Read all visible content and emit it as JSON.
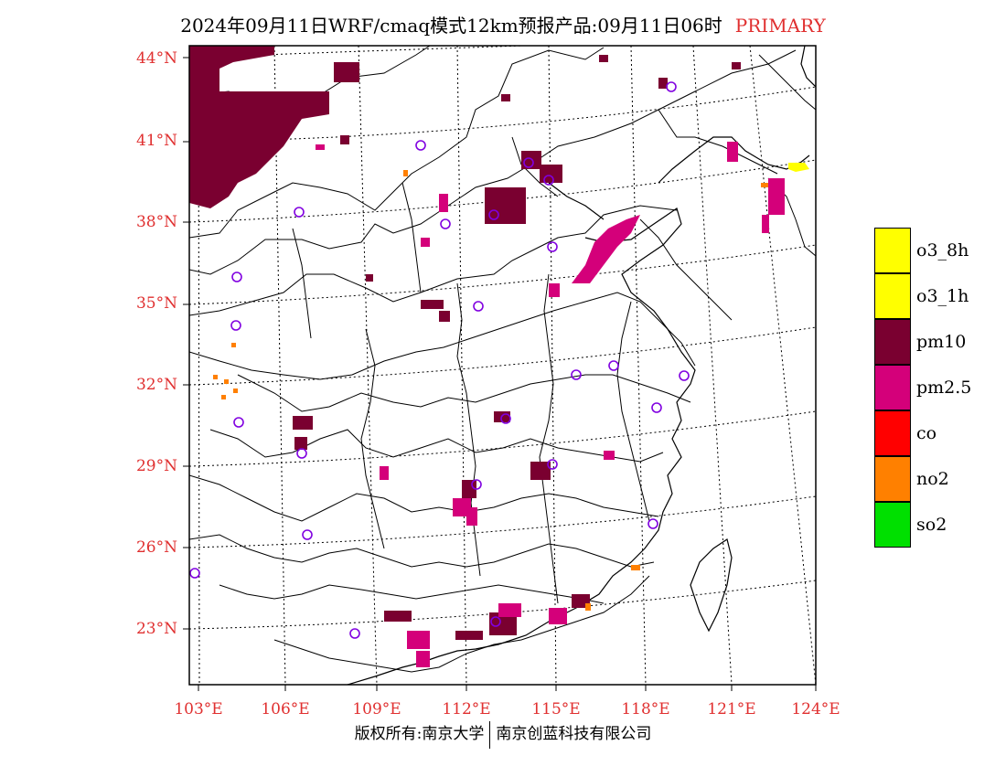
{
  "header": {
    "title": "2024年09月11日WRF/cmaq模式12km预报产品:09月11日06时",
    "tag": "PRIMARY"
  },
  "axes": {
    "lat_labels": [
      "44°N",
      "41°N",
      "38°N",
      "35°N",
      "32°N",
      "29°N",
      "26°N",
      "23°N"
    ],
    "lon_labels": [
      "103°E",
      "106°E",
      "109°E",
      "112°E",
      "115°E",
      "118°E",
      "121°E",
      "124°E"
    ]
  },
  "legend": {
    "items": [
      {
        "label": "o3_8h",
        "color": "#ffff00"
      },
      {
        "label": "o3_1h",
        "color": "#ffff00"
      },
      {
        "label": "pm10",
        "color": "#7a0030"
      },
      {
        "label": "pm2.5",
        "color": "#d4007a"
      },
      {
        "label": "co",
        "color": "#ff0000"
      },
      {
        "label": "no2",
        "color": "#ff8000"
      },
      {
        "label": "so2",
        "color": "#00e000"
      }
    ]
  },
  "footer": {
    "left": "版权所有:南京大学",
    "right": "南京创蓝科技有限公司"
  }
}
